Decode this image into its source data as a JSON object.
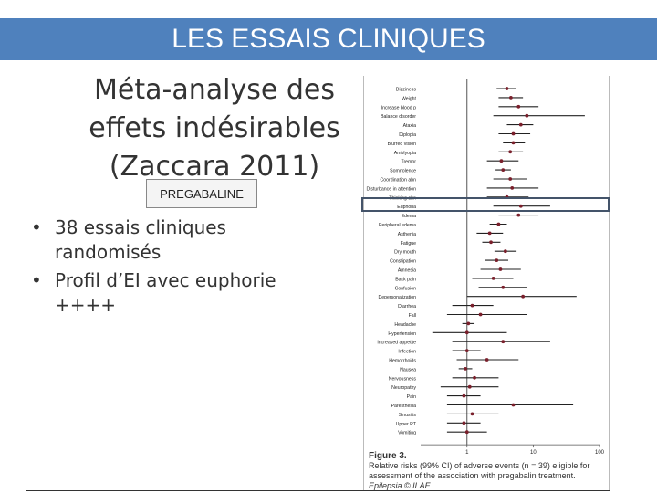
{
  "banner": {
    "title": "LES ESSAIS CLINIQUES"
  },
  "slide": {
    "title_lines": [
      "Méta-analyse des",
      "effets indésirables",
      "(Zaccara 2011)"
    ],
    "drug_label": "PREGABALINE",
    "bullets": [
      "38 essais cliniques randomisés",
      "Profil d’EI avec euphorie ++++"
    ]
  },
  "chart_data": {
    "type": "scatter",
    "scale": "log",
    "xlim": [
      0.2,
      100
    ],
    "x_ticks": [
      {
        "value": 1,
        "label": "1"
      },
      {
        "value": 10,
        "label": "10"
      },
      {
        "value": 100,
        "label": "100"
      }
    ],
    "rows": [
      {
        "label": "Dizziness",
        "rr": 4.0,
        "lo": 2.8,
        "hi": 5.5
      },
      {
        "label": "Weight",
        "rr": 4.6,
        "lo": 3.0,
        "hi": 7.0
      },
      {
        "label": "Increase blood p",
        "rr": 6.0,
        "lo": 3.0,
        "hi": 12.0
      },
      {
        "label": "Balance disorder",
        "rr": 8.0,
        "lo": 2.5,
        "hi": 60.0
      },
      {
        "label": "Ataxia",
        "rr": 6.5,
        "lo": 4.0,
        "hi": 10.0
      },
      {
        "label": "Diplopia",
        "rr": 5.0,
        "lo": 3.0,
        "hi": 9.0
      },
      {
        "label": "Blurred vision",
        "rr": 5.0,
        "lo": 3.5,
        "hi": 7.5
      },
      {
        "label": "Amblyopia",
        "rr": 4.5,
        "lo": 3.0,
        "hi": 7.0
      },
      {
        "label": "Tremor",
        "rr": 3.3,
        "lo": 2.0,
        "hi": 6.0
      },
      {
        "label": "Somnolence",
        "rr": 3.5,
        "lo": 2.7,
        "hi": 4.6
      },
      {
        "label": "Coordination abn",
        "rr": 4.5,
        "lo": 2.5,
        "hi": 8.0
      },
      {
        "label": "Disturbance in attention",
        "rr": 4.8,
        "lo": 2.0,
        "hi": 12.0
      },
      {
        "label": "Thinking abn",
        "rr": 4.0,
        "lo": 2.0,
        "hi": 8.5
      },
      {
        "label": "Euphoria",
        "rr": 6.5,
        "lo": 2.5,
        "hi": 18.0
      },
      {
        "label": "Edema",
        "rr": 6.0,
        "lo": 3.0,
        "hi": 12.0
      },
      {
        "label": "Peripheral edema",
        "rr": 3.0,
        "lo": 2.2,
        "hi": 4.0
      },
      {
        "label": "Asthenia",
        "rr": 2.2,
        "lo": 1.4,
        "hi": 3.5
      },
      {
        "label": "Fatigue",
        "rr": 2.3,
        "lo": 1.7,
        "hi": 3.2
      },
      {
        "label": "Dry mouth",
        "rr": 3.8,
        "lo": 2.6,
        "hi": 5.6
      },
      {
        "label": "Constipation",
        "rr": 2.8,
        "lo": 1.9,
        "hi": 4.2
      },
      {
        "label": "Amnesia",
        "rr": 3.2,
        "lo": 1.6,
        "hi": 6.5
      },
      {
        "label": "Back pain",
        "rr": 2.5,
        "lo": 1.2,
        "hi": 5.0
      },
      {
        "label": "Confusion",
        "rr": 3.5,
        "lo": 1.5,
        "hi": 8.0
      },
      {
        "label": "Depersonalization",
        "rr": 7.0,
        "lo": 1.0,
        "hi": 45.0
      },
      {
        "label": "Diarrhea",
        "rr": 1.2,
        "lo": 0.6,
        "hi": 2.5
      },
      {
        "label": "Fall",
        "rr": 1.6,
        "lo": 0.5,
        "hi": 8.0
      },
      {
        "label": "Headache",
        "rr": 1.05,
        "lo": 0.85,
        "hi": 1.3
      },
      {
        "label": "Hypertension",
        "rr": 1.0,
        "lo": 0.3,
        "hi": 4.0
      },
      {
        "label": "Increased appetite",
        "rr": 3.5,
        "lo": 0.6,
        "hi": 18.0
      },
      {
        "label": "Infection",
        "rr": 1.0,
        "lo": 0.6,
        "hi": 1.6
      },
      {
        "label": "Hemorrhoids",
        "rr": 2.0,
        "lo": 0.7,
        "hi": 6.0
      },
      {
        "label": "Nausea",
        "rr": 0.95,
        "lo": 0.75,
        "hi": 1.2
      },
      {
        "label": "Nervousness",
        "rr": 1.3,
        "lo": 0.6,
        "hi": 3.0
      },
      {
        "label": "Neuropathy",
        "rr": 1.1,
        "lo": 0.4,
        "hi": 3.0
      },
      {
        "label": "Pain",
        "rr": 0.9,
        "lo": 0.5,
        "hi": 1.6
      },
      {
        "label": "Paresthesia",
        "rr": 5.0,
        "lo": 0.5,
        "hi": 40.0
      },
      {
        "label": "Sinusitis",
        "rr": 1.2,
        "lo": 0.5,
        "hi": 3.0
      },
      {
        "label": "Upper RT",
        "rr": 0.9,
        "lo": 0.5,
        "hi": 1.6
      },
      {
        "label": "Vomiting",
        "rr": 1.0,
        "lo": 0.5,
        "hi": 2.0
      }
    ]
  },
  "caption": {
    "fig": "Figure 3.",
    "line1": "Relative risks (99% CI) of adverse events (n = 39) eligible for",
    "line2": "assessment of the association with pregabalin treatment.",
    "source": "Epilepsia © ILAE"
  }
}
